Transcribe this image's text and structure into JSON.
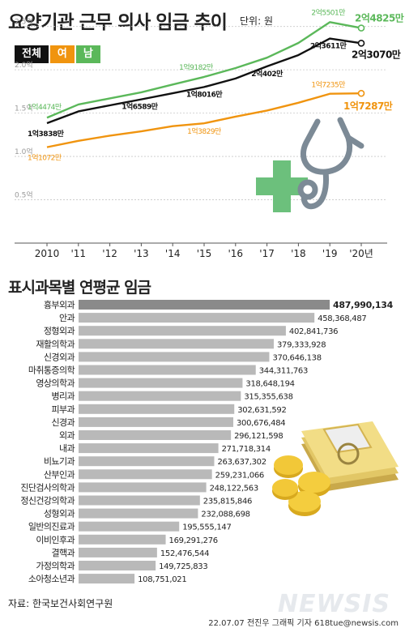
{
  "title": "요양기관 근무 의사 임금 추이",
  "unit": "단위: 원",
  "legend": {
    "total": "전체",
    "female": "여",
    "male": "남"
  },
  "colors": {
    "total": "#111111",
    "female": "#f0940f",
    "male": "#5bb85a",
    "bar": "#b9b9b9",
    "bar_top": "#8a8a8a",
    "cross": "#6cc07c",
    "stetho": "#7c8a96"
  },
  "section2_title": "표시과목별 연평균 임금",
  "source": "자료: 한국보건사회연구원",
  "credit": "22.07.07 전진우 그래픽 기자 618tue@newsis.com",
  "watermark": "NEWSIS",
  "chart_data": [
    {
      "type": "line",
      "title": "요양기관 근무 의사 임금 추이",
      "x_tick_labels": [
        "2010",
        "'11",
        "'12",
        "'13",
        "'14",
        "'15",
        "'16",
        "'17",
        "'18",
        "'19",
        "'20년"
      ],
      "ylim": [
        0,
        2.6
      ],
      "y_ticks": [
        0.5,
        1.0,
        1.5,
        2.0,
        2.5
      ],
      "y_tick_labels": [
        "0.5억",
        "1.0억",
        "1.5억",
        "2.0억",
        "2.5억"
      ],
      "grid": true,
      "series": [
        {
          "name": "남",
          "color": "#5bb85a",
          "values": [
            1.4474,
            1.6,
            1.67,
            1.74,
            1.83,
            1.9182,
            2.02,
            2.14,
            2.31,
            2.5501,
            2.4825
          ]
        },
        {
          "name": "전체",
          "color": "#111111",
          "values": [
            1.3838,
            1.52,
            1.59,
            1.6589,
            1.73,
            1.8016,
            1.9,
            2.0402,
            2.17,
            2.3611,
            2.307
          ]
        },
        {
          "name": "여",
          "color": "#f0940f",
          "values": [
            1.1072,
            1.18,
            1.24,
            1.29,
            1.35,
            1.3829,
            1.46,
            1.53,
            1.62,
            1.7235,
            1.7287
          ]
        }
      ],
      "annotations": [
        {
          "series": "남",
          "index": 0,
          "text": "1억4474만"
        },
        {
          "series": "남",
          "index": 5,
          "text": "1억9182만"
        },
        {
          "series": "남",
          "index": 9,
          "text": "2억5501만"
        },
        {
          "series": "남",
          "index": 10,
          "text": "2억4825만"
        },
        {
          "series": "전체",
          "index": 0,
          "text": "1억3838만"
        },
        {
          "series": "전체",
          "index": 3,
          "text": "1억6589만"
        },
        {
          "series": "전체",
          "index": 5,
          "text": "1억8016만"
        },
        {
          "series": "전체",
          "index": 7,
          "text": "2억402만"
        },
        {
          "series": "전체",
          "index": 9,
          "text": "2억3611만"
        },
        {
          "series": "전체",
          "index": 10,
          "text": "2억3070만"
        },
        {
          "series": "여",
          "index": 0,
          "text": "1억1072만"
        },
        {
          "series": "여",
          "index": 5,
          "text": "1억3829만"
        },
        {
          "series": "여",
          "index": 9,
          "text": "1억7235만"
        },
        {
          "series": "여",
          "index": 10,
          "text": "1억7287만"
        }
      ]
    },
    {
      "type": "bar",
      "orientation": "horizontal",
      "title": "표시과목별 연평균 임금",
      "categories": [
        "흉부외과",
        "안과",
        "정형외과",
        "재활의학과",
        "신경외과",
        "마취통증의학",
        "영상의학과",
        "병리과",
        "피부과",
        "신경과",
        "외과",
        "내과",
        "비뇨기과",
        "산부인과",
        "진단검사의학과",
        "정신건강의학과",
        "성형외과",
        "일반의진료과",
        "이비인후과",
        "결핵과",
        "가정의학과",
        "소아청소년과"
      ],
      "values": [
        487990134,
        458368487,
        402841736,
        379333928,
        370646138,
        344311763,
        318648194,
        315355638,
        302631592,
        300676484,
        296121598,
        271718314,
        263637302,
        259231066,
        248122563,
        235815846,
        232088698,
        195555147,
        169291276,
        152476544,
        149725833,
        108751021
      ],
      "value_labels": [
        "487,990,134",
        "458,368,487",
        "402,841,736",
        "379,333,928",
        "370,646,138",
        "344,311,763",
        "318,648,194",
        "315,355,638",
        "302,631,592",
        "300,676,484",
        "296,121,598",
        "271,718,314",
        "263,637,302",
        "259,231,066",
        "248,122,563",
        "235,815,846",
        "232,088,698",
        "195,555,147",
        "169,291,276",
        "152,476,544",
        "149,725,833",
        "108,751,021"
      ]
    }
  ]
}
